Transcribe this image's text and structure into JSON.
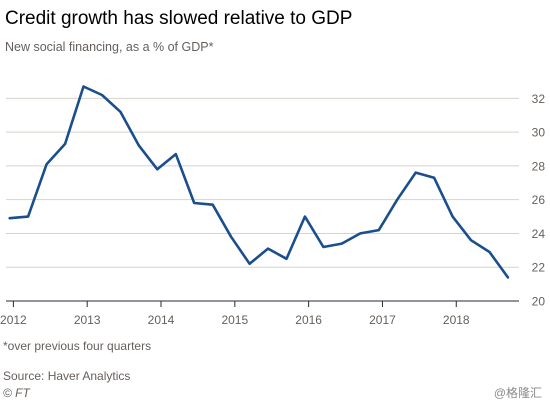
{
  "title": "Credit growth has slowed relative to GDP",
  "subtitle": "New social financing, as a % of GDP*",
  "footnote": "*over previous four quarters",
  "source": "Source: Haver Analytics",
  "credit": "© FT",
  "watermark": "@格隆汇",
  "colors": {
    "line": "#1b4e8c",
    "grid": "#d6d2cc",
    "axis": "#262a33",
    "tick_text": "#66605c"
  },
  "chart_data": {
    "type": "line",
    "title": "Credit growth has slowed relative to GDP",
    "subtitle": "New social financing, as a % of GDP*",
    "xlabel": "",
    "ylabel": "",
    "xlim": [
      2011.9,
      2018.85
    ],
    "ylim": [
      20,
      33.5
    ],
    "x_ticks": [
      2012,
      2013,
      2014,
      2015,
      2016,
      2017,
      2018
    ],
    "x_tick_labels": [
      "2012",
      "2013",
      "2014",
      "2015",
      "2016",
      "2017",
      "2018"
    ],
    "y_ticks": [
      20,
      22,
      24,
      26,
      28,
      30,
      32
    ],
    "y_tick_labels": [
      "20",
      "22",
      "24",
      "26",
      "28",
      "30",
      "32"
    ],
    "y_axis_position": "right",
    "grid": true,
    "legend": "none",
    "series": [
      {
        "x": [
          2011.95,
          2012.2,
          2012.45,
          2012.7,
          2012.95,
          2013.2,
          2013.45,
          2013.7,
          2013.95,
          2014.2,
          2014.45,
          2014.7,
          2014.95,
          2015.2,
          2015.45,
          2015.7,
          2015.95,
          2016.2,
          2016.45,
          2016.7,
          2016.95,
          2017.2,
          2017.45,
          2017.7,
          2017.95,
          2018.2,
          2018.45,
          2018.7
        ],
        "values": [
          24.9,
          25.0,
          28.1,
          29.3,
          32.7,
          32.2,
          31.2,
          29.2,
          27.8,
          28.7,
          25.8,
          25.7,
          23.8,
          22.2,
          23.1,
          22.5,
          25.0,
          23.2,
          23.4,
          24.0,
          24.2,
          26.0,
          27.6,
          27.3,
          25.0,
          23.6,
          22.9,
          21.4
        ]
      }
    ]
  }
}
